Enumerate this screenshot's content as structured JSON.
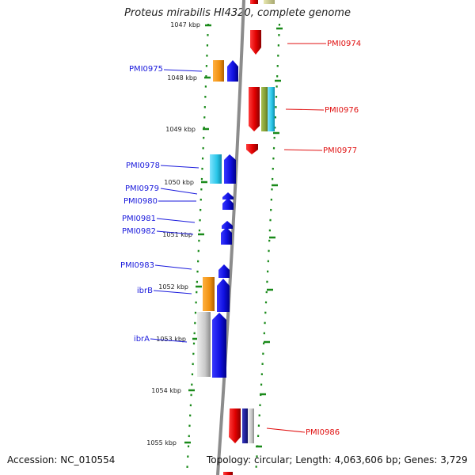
{
  "title": "Proteus mirabilis HI4320, complete genome",
  "ruler_ticks": [
    "1047 kbp",
    "1048 kbp",
    "1049 kbp",
    "1050 kbp",
    "1051 kbp",
    "1052 kbp",
    "1053 kbp",
    "1054 kbp",
    "1055 kbp"
  ],
  "gene_labels_left": [
    "PMI0975",
    "PMI0978",
    "PMI0979",
    "PMI0980",
    "PMI0981",
    "PMI0982",
    "PMI0983",
    "ibrB",
    "ibrA"
  ],
  "gene_labels_right": [
    "PMI0974",
    "PMI0976",
    "PMI0977",
    "PMI0986"
  ],
  "footer": {
    "accession": "Accession: NC_010554",
    "summary": "Topology: circular; Length: 4,063,606 bp; Genes: 3,729"
  },
  "colors": {
    "forward_gene": "#1414e6",
    "reverse_gene": "#e01010",
    "backbone": "#8c8c8c",
    "ruler_ticks": "#1a8a1a",
    "orange_feature": "#f0900f",
    "cyan_feature": "#29c6e8",
    "gray_feature": "#c8c8c8",
    "olive_feature": "#7f9a33",
    "navy_feature": "#1a1a8a"
  }
}
